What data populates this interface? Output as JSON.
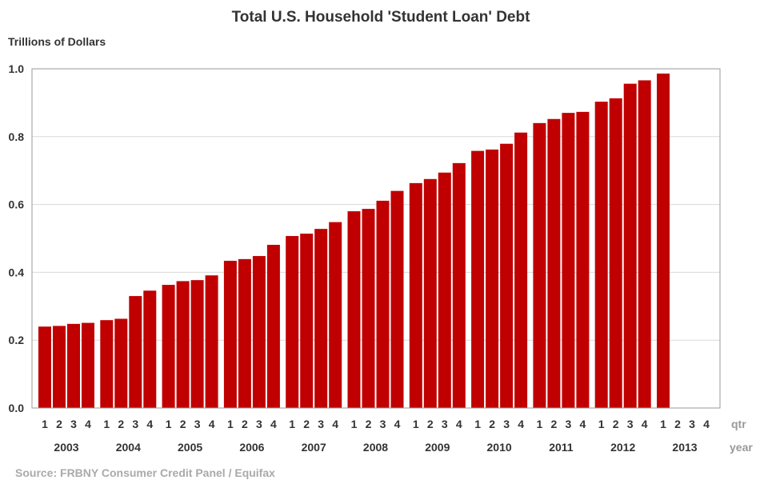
{
  "chart_data": {
    "type": "bar",
    "title": "Total U.S. Household 'Student Loan' Debt",
    "ylabel": "Trillions of Dollars",
    "ylim": [
      0,
      1.0
    ],
    "yticks": [
      "0.0",
      "0.2",
      "0.4",
      "0.6",
      "0.8",
      "1.0"
    ],
    "grid": true,
    "x_row_labels": {
      "quarter": "qtr",
      "year": "year"
    },
    "quarter_labels": [
      "1",
      "2",
      "3",
      "4"
    ],
    "years": [
      "2003",
      "2004",
      "2005",
      "2006",
      "2007",
      "2008",
      "2009",
      "2010",
      "2011",
      "2012",
      "2013"
    ],
    "values": [
      [
        0.24,
        0.242,
        0.248,
        0.251
      ],
      [
        0.259,
        0.263,
        0.33,
        0.346
      ],
      [
        0.363,
        0.374,
        0.377,
        0.391
      ],
      [
        0.434,
        0.439,
        0.448,
        0.481
      ],
      [
        0.507,
        0.514,
        0.528,
        0.548
      ],
      [
        0.58,
        0.587,
        0.611,
        0.64
      ],
      [
        0.663,
        0.675,
        0.694,
        0.722
      ],
      [
        0.758,
        0.762,
        0.779,
        0.812
      ],
      [
        0.84,
        0.852,
        0.87,
        0.873
      ],
      [
        0.903,
        0.913,
        0.956,
        0.966
      ],
      [
        0.986,
        null,
        null,
        null
      ]
    ],
    "bar_color": "#c00000",
    "source": "Source: FRBNY  Consumer Credit Panel / Equifax"
  }
}
